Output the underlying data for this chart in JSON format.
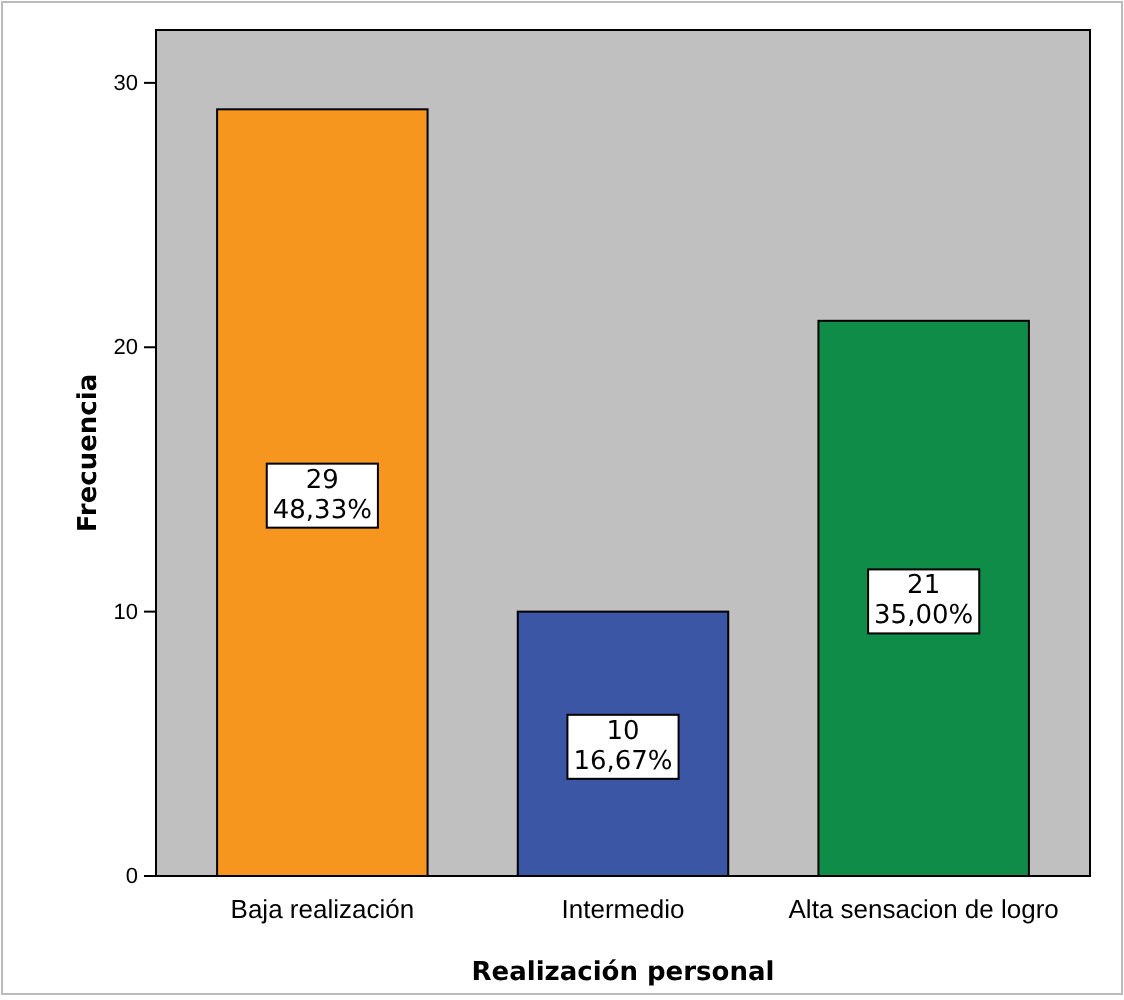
{
  "chart_data": {
    "type": "bar",
    "xlabel": "Realización personal",
    "ylabel": "Frecuencia",
    "categories": [
      "Baja realización",
      "Intermedio",
      "Alta sensacion de logro"
    ],
    "values": [
      29,
      10,
      21
    ],
    "colors": [
      "#f7961e",
      "#3c56a6",
      "#0f8c48"
    ],
    "value_labels": [
      "29\n48,33%",
      "10\n16,67%",
      "21\n35,00%"
    ],
    "ylim": [
      0,
      32
    ],
    "yticks": [
      0,
      10,
      20,
      30
    ],
    "grid": false
  }
}
